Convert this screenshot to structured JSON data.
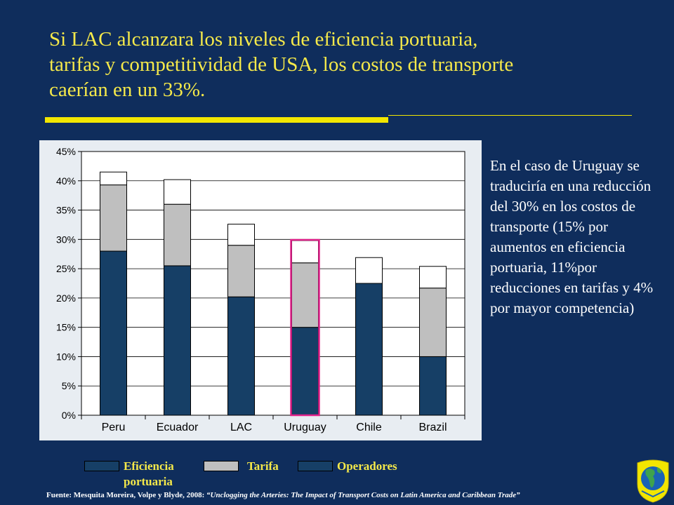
{
  "title_lines": [
    "Si LAC alcanzara los niveles de eficiencia portuaria,",
    "tarifas y competitividad  de USA, los costos de transporte",
    "caerían en un 33%."
  ],
  "side_text": "En el caso de Uruguay se traduciría en una reducción del 30% en los costos de transporte (15% por aumentos en eficiencia portuaria, 11%por reducciones en tarifas y 4% por mayor competencia)",
  "source_prefix": "Fuente: Mesquita Moreira, Volpe y Blyde, 2008: ",
  "source_title": "“Unclogging the Arteries: The Impact of Transport Costs on Latin America and Caribbean Trade”",
  "logo_icon": "americas-globe-icon",
  "colors": {
    "background": "#0f2d5c",
    "title": "#f5e94a",
    "eficiencia": "#163f66",
    "tarifa": "#bfbfbf",
    "operadores": "#ffffff",
    "highlight": "#e0218a"
  },
  "chart_data": {
    "type": "bar",
    "stacked": true,
    "categories": [
      "Peru",
      "Ecuador",
      "LAC",
      "Uruguay",
      "Chile",
      "Brazil"
    ],
    "series": [
      {
        "name": "Eficiencia portuaria",
        "values": [
          28,
          25.5,
          20.2,
          15,
          22.5,
          10
        ]
      },
      {
        "name": "Tarifa",
        "values": [
          11.3,
          10.5,
          8.8,
          11,
          0,
          11.7
        ]
      },
      {
        "name": "Operadores",
        "values": [
          2.2,
          4.2,
          3.6,
          3.8,
          4.4,
          3.7
        ]
      }
    ],
    "ylim": [
      0,
      45
    ],
    "yticks": [
      "0%",
      "5%",
      "10%",
      "15%",
      "20%",
      "25%",
      "30%",
      "35%",
      "40%",
      "45%"
    ],
    "highlight_category": "Uruguay",
    "grid": true,
    "legend_position": "bottom"
  }
}
